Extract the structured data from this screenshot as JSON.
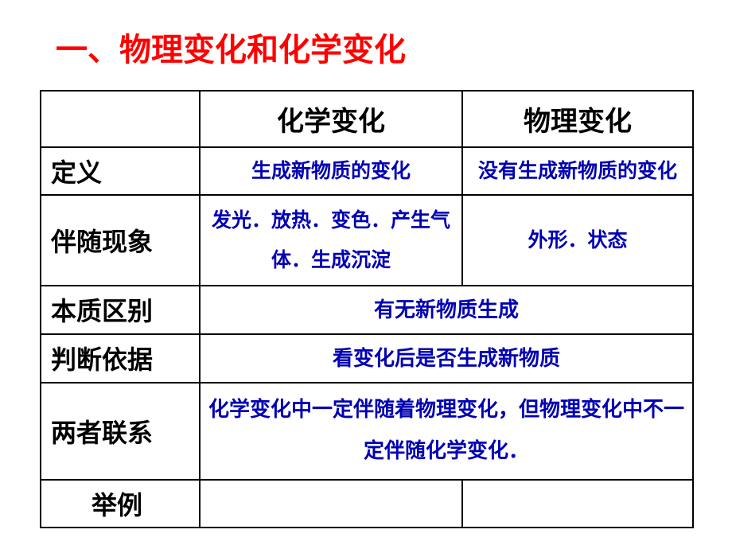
{
  "colors": {
    "title": "#ff0000",
    "content": "#0000b3",
    "header": "#000000",
    "border": "#000000",
    "background": "#ffffff"
  },
  "title": "一、物理变化和化学变化",
  "headers": {
    "col1_empty": "",
    "chemical": "化学变化",
    "physical": "物理变化"
  },
  "rows": {
    "definition": {
      "label": "定义",
      "chemical": "生成新物质的变化",
      "physical": "没有生成新物质的变化"
    },
    "phenomena": {
      "label": "伴随现象",
      "chemical": "发光．放热．变色．产生气体．生成沉淀",
      "physical": "外形．状态"
    },
    "essence": {
      "label": "本质区别",
      "merged": "有无新物质生成"
    },
    "judgment": {
      "label": "判断依据",
      "merged": "看变化后是否生成新物质"
    },
    "relation": {
      "label": "两者联系",
      "merged": "化学变化中一定伴随着物理变化，但物理变化中不一定伴随化学变化．"
    },
    "examples": {
      "label": "举例",
      "chemical": "",
      "physical": ""
    }
  }
}
